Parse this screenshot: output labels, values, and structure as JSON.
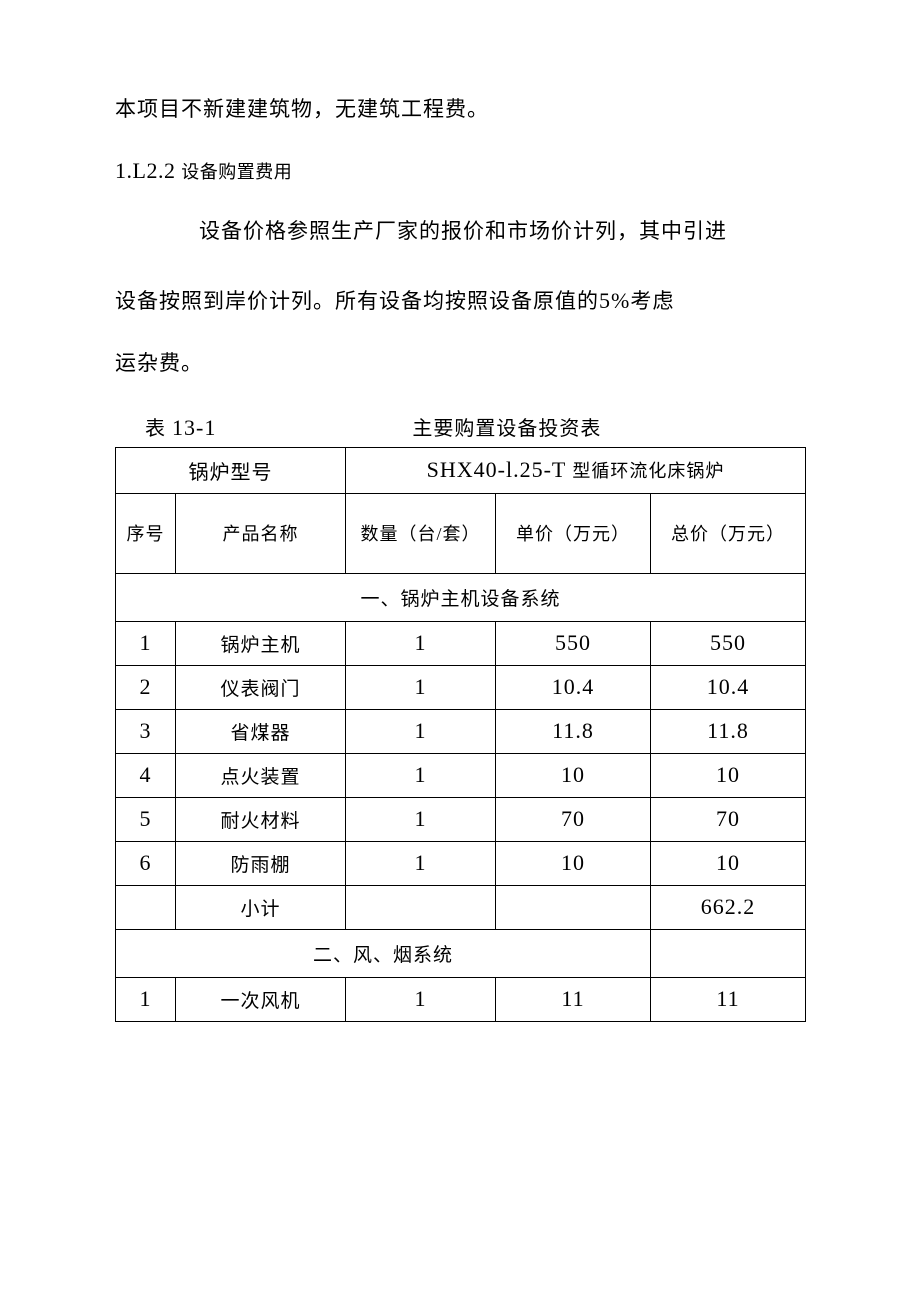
{
  "text": {
    "intro": "本项目不新建建筑物，无建筑工程费。",
    "heading_num": "1.L2.2",
    "heading_label": "设备购置费用",
    "para2": "设备价格参照生产厂家的报价和市场价计列，其中引进",
    "para3a": "设备按照到岸价计列。所有设备均按照设备原值的",
    "para3_pct": "5%",
    "para3b": "考虑",
    "para4": "运杂费。",
    "table_num_prefix": "表",
    "table_num": "13-1",
    "table_title": "主要购置设备投资表"
  },
  "table": {
    "header1": {
      "model_label": "锅炉型号",
      "model_value": "SHX40-l.25-T",
      "model_suffix": "型循环流化床锅炉"
    },
    "header2": {
      "seq": "序号",
      "name": "产品名称",
      "qty": "数量（台/套）",
      "price": "单价（万元）",
      "total": "总价（万元）"
    },
    "section1": "一、锅炉主机设备系统",
    "section1_rows": [
      {
        "seq": "1",
        "name": "锅炉主机",
        "qty": "1",
        "price": "550",
        "total": "550"
      },
      {
        "seq": "2",
        "name": "仪表阀门",
        "qty": "1",
        "price": "10.4",
        "total": "10.4"
      },
      {
        "seq": "3",
        "name": "省煤器",
        "qty": "1",
        "price": "11.8",
        "total": "11.8"
      },
      {
        "seq": "4",
        "name": "点火装置",
        "qty": "1",
        "price": "10",
        "total": "10"
      },
      {
        "seq": "5",
        "name": "耐火材料",
        "qty": "1",
        "price": "70",
        "total": "70"
      },
      {
        "seq": "6",
        "name": "防雨棚",
        "qty": "1",
        "price": "10",
        "total": "10"
      }
    ],
    "subtotal1": {
      "seq": "",
      "name": "小计",
      "qty": "",
      "price": "",
      "total": "662.2"
    },
    "section2": "二、风、烟系统",
    "section2_rows": [
      {
        "seq": "1",
        "name": "一次风机",
        "qty": "1",
        "price": "11",
        "total": "11"
      }
    ]
  },
  "style": {
    "background": "#ffffff",
    "text_color": "#000000",
    "border_color": "#000000",
    "body_fontsize": 21,
    "table_fontsize": 19
  }
}
